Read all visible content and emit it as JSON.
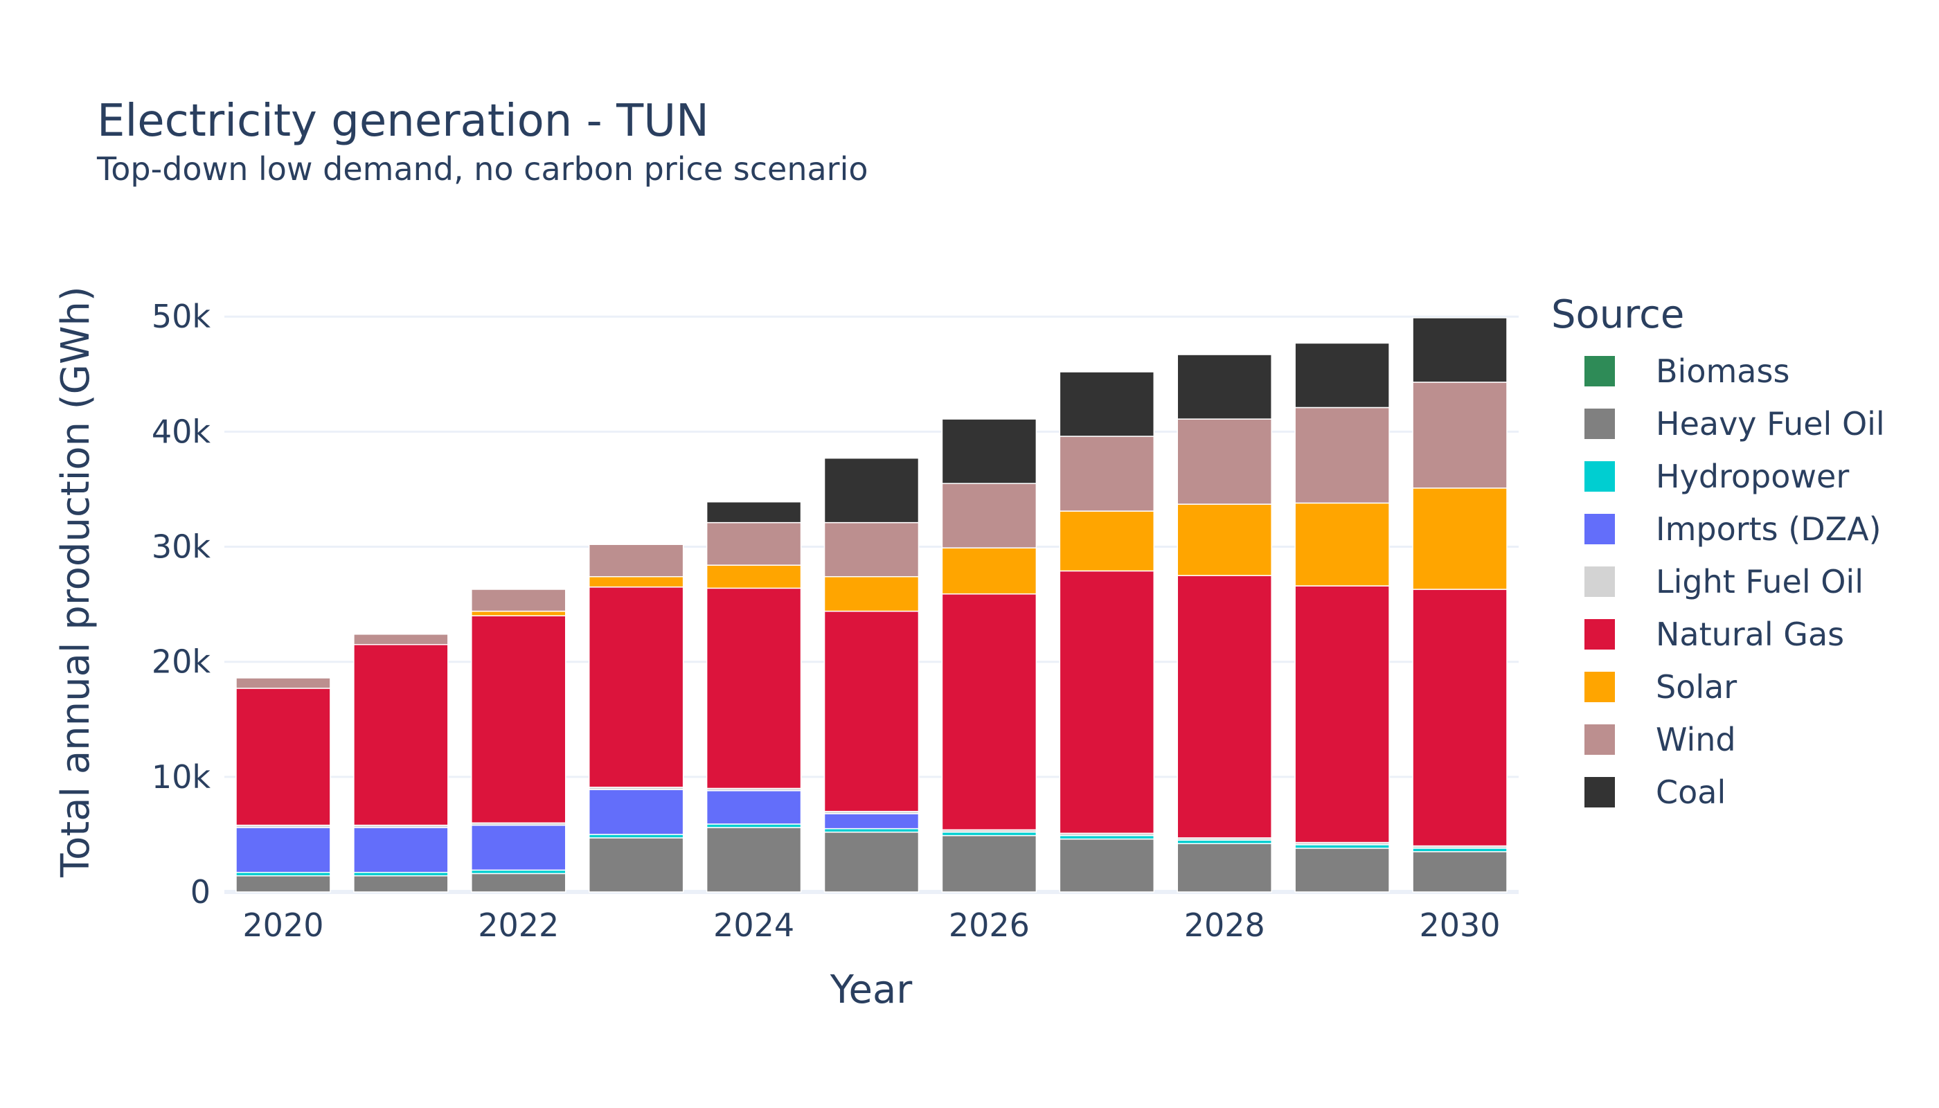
{
  "chart_data": {
    "type": "bar",
    "stacked": true,
    "title": "Electricity generation - TUN",
    "subtitle": "Top-down low demand, no carbon price scenario",
    "xlabel": "Year",
    "ylabel": "Total annual production (GWh)",
    "x": [
      2020,
      2021,
      2022,
      2023,
      2024,
      2025,
      2026,
      2027,
      2028,
      2029,
      2030
    ],
    "x_tick_values": [
      2020,
      2022,
      2024,
      2026,
      2028,
      2030
    ],
    "x_tick_labels": [
      "2020",
      "2022",
      "2024",
      "2026",
      "2028",
      "2030"
    ],
    "ylim": [
      0,
      52000
    ],
    "y_tick_values": [
      0,
      10000,
      20000,
      30000,
      40000,
      50000
    ],
    "y_tick_labels": [
      "0",
      "10k",
      "20k",
      "30k",
      "40k",
      "50k"
    ],
    "grid": true,
    "legend_title": "Source",
    "legend_position": "right",
    "series": [
      {
        "name": "Biomass",
        "color": "#2e8b57",
        "values": [
          0,
          0,
          0,
          0,
          0,
          0,
          0,
          0,
          0,
          0,
          0
        ]
      },
      {
        "name": "Heavy Fuel Oil",
        "color": "#808080",
        "values": [
          1400,
          1400,
          1600,
          4700,
          5600,
          5200,
          4900,
          4600,
          4200,
          3800,
          3500
        ]
      },
      {
        "name": "Hydropower",
        "color": "#00ced1",
        "values": [
          300,
          300,
          300,
          300,
          300,
          300,
          300,
          300,
          300,
          300,
          300
        ]
      },
      {
        "name": "Imports (DZA)",
        "color": "#636efa",
        "values": [
          3900,
          3900,
          3900,
          3900,
          2900,
          1300,
          0,
          0,
          0,
          0,
          0
        ]
      },
      {
        "name": "Light Fuel Oil",
        "color": "#d3d3d3",
        "values": [
          200,
          200,
          200,
          200,
          200,
          200,
          200,
          200,
          200,
          200,
          200
        ]
      },
      {
        "name": "Natural Gas",
        "color": "#dc143c",
        "values": [
          11900,
          15700,
          18000,
          17400,
          17400,
          17400,
          20500,
          22800,
          22800,
          22300,
          22300
        ]
      },
      {
        "name": "Solar",
        "color": "#ffa500",
        "values": [
          0,
          0,
          400,
          900,
          2000,
          3000,
          4000,
          5200,
          6200,
          7200,
          8800
        ]
      },
      {
        "name": "Wind",
        "color": "#bc8f8f",
        "values": [
          900,
          900,
          1900,
          2800,
          3700,
          4700,
          5600,
          6500,
          7400,
          8300,
          9200
        ]
      },
      {
        "name": "Coal",
        "color": "#333333",
        "values": [
          0,
          0,
          0,
          0,
          1800,
          5600,
          5600,
          5600,
          5600,
          5600,
          5600
        ]
      }
    ]
  }
}
